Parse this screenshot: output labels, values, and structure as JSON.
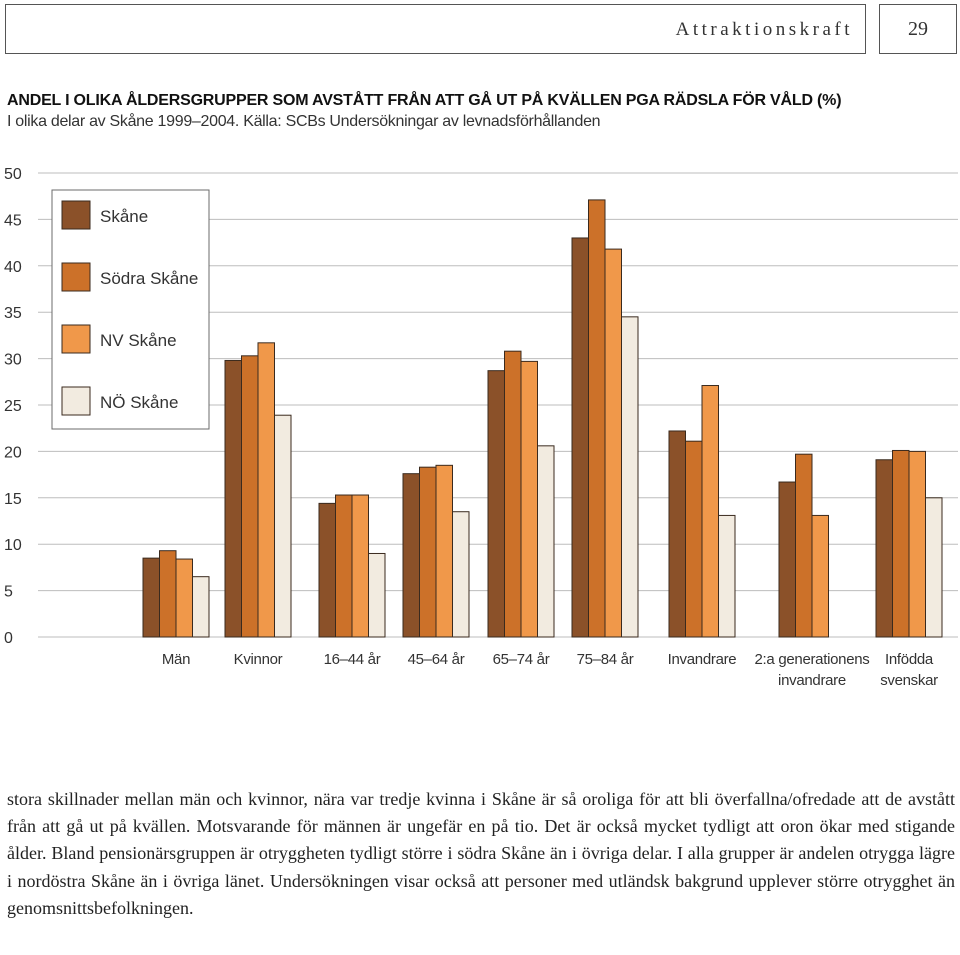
{
  "header": {
    "section_title": "Attraktionskraft",
    "page_number": "29"
  },
  "chart_data": {
    "type": "bar",
    "title": "ANDEL I OLIKA ÅLDERSGRUPPER SOM AVSTÅTT FRÅN ATT GÅ UT PÅ KVÄLLEN PGA RÄDSLA FÖR VÅLD (%)",
    "subtitle": "I olika delar av Skåne 1999–2004. Källa: SCBs Undersökningar av levnadsförhållanden",
    "categories": [
      [
        "Män"
      ],
      [
        "Kvinnor"
      ],
      [
        "16–44 år"
      ],
      [
        "45–64 år"
      ],
      [
        "65–74 år"
      ],
      [
        "75–84 år"
      ],
      [
        "Invandrare"
      ],
      [
        "2:a generationens",
        "invandrare"
      ],
      [
        "Infödda",
        "svenskar"
      ]
    ],
    "series": [
      {
        "name": "Skåne",
        "color": "#8b5129",
        "values": [
          8.5,
          29.8,
          14.4,
          17.6,
          28.7,
          43.0,
          22.2,
          16.7,
          19.1
        ]
      },
      {
        "name": "Södra Skåne",
        "color": "#cc7129",
        "values": [
          9.3,
          30.3,
          15.3,
          18.3,
          30.8,
          47.1,
          21.1,
          19.7,
          20.1
        ]
      },
      {
        "name": "NV Skåne",
        "color": "#f0984a",
        "values": [
          8.4,
          31.7,
          15.3,
          18.5,
          29.7,
          41.8,
          27.1,
          13.1,
          20.0
        ]
      },
      {
        "name": "NÖ Skåne",
        "color": "#f2ebe0",
        "values": [
          6.5,
          23.9,
          9.0,
          13.5,
          20.6,
          34.5,
          13.1,
          0,
          15.0
        ]
      }
    ],
    "yticks": [
      0,
      5,
      10,
      15,
      20,
      25,
      30,
      35,
      40,
      45,
      50
    ],
    "ylim": [
      0,
      50
    ],
    "grid": true,
    "legend_position": "top-left"
  },
  "body_text": "stora skillnader mellan män och kvinnor, nära var tredje kvinna i Skåne är så oroliga för att bli överfallna/ofredade att de avstått från att gå ut på kvällen. Motsvarande för männen är ungefär en på tio. Det är också mycket tydligt att oron ökar med stigande ålder. Bland pensionärsgruppen är otryggheten tydligt större i södra Skåne än i övriga delar. I alla grupper är andelen otrygga lägre i nordöstra Skåne än i övriga länet. Undersökningen visar också att personer med utländsk bakgrund upplever större otrygghet än genomsnittsbefolkningen."
}
